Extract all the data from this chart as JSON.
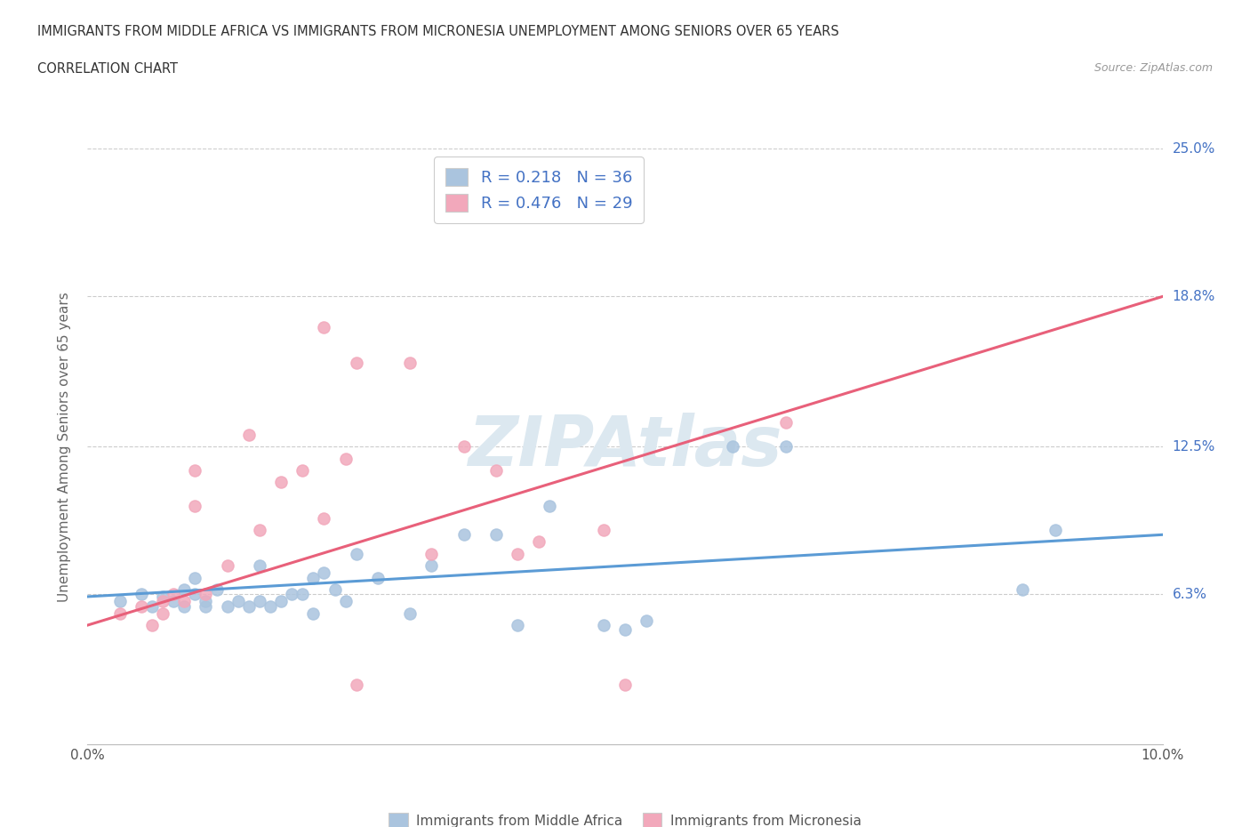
{
  "title_line1": "IMMIGRANTS FROM MIDDLE AFRICA VS IMMIGRANTS FROM MICRONESIA UNEMPLOYMENT AMONG SENIORS OVER 65 YEARS",
  "title_line2": "CORRELATION CHART",
  "source_text": "Source: ZipAtlas.com",
  "ylabel": "Unemployment Among Seniors over 65 years",
  "xlim": [
    0.0,
    0.1
  ],
  "ylim": [
    0.0,
    0.25
  ],
  "ytick_labels_right": [
    "6.3%",
    "12.5%",
    "18.8%",
    "25.0%"
  ],
  "ytick_vals_right": [
    0.063,
    0.125,
    0.188,
    0.25
  ],
  "legend_label1": "Immigrants from Middle Africa",
  "legend_label2": "Immigrants from Micronesia",
  "color_blue": "#aac4de",
  "color_pink": "#f2a8bb",
  "line_blue": "#5b9bd5",
  "line_pink": "#e8607a",
  "watermark_color": "#dce8f0",
  "blue_scatter_x": [
    0.003,
    0.005,
    0.006,
    0.007,
    0.008,
    0.009,
    0.009,
    0.01,
    0.01,
    0.011,
    0.011,
    0.012,
    0.013,
    0.014,
    0.015,
    0.016,
    0.016,
    0.017,
    0.018,
    0.019,
    0.02,
    0.021,
    0.021,
    0.022,
    0.023,
    0.024,
    0.025,
    0.027,
    0.03,
    0.032,
    0.035,
    0.038,
    0.04,
    0.043,
    0.048,
    0.05,
    0.052,
    0.06,
    0.065,
    0.087,
    0.09
  ],
  "blue_scatter_y": [
    0.06,
    0.063,
    0.058,
    0.062,
    0.06,
    0.058,
    0.065,
    0.063,
    0.07,
    0.058,
    0.06,
    0.065,
    0.058,
    0.06,
    0.058,
    0.06,
    0.075,
    0.058,
    0.06,
    0.063,
    0.063,
    0.055,
    0.07,
    0.072,
    0.065,
    0.06,
    0.08,
    0.07,
    0.055,
    0.075,
    0.088,
    0.088,
    0.05,
    0.1,
    0.05,
    0.048,
    0.052,
    0.125,
    0.125,
    0.065,
    0.09
  ],
  "pink_scatter_x": [
    0.003,
    0.005,
    0.006,
    0.007,
    0.007,
    0.008,
    0.009,
    0.01,
    0.01,
    0.011,
    0.013,
    0.015,
    0.016,
    0.018,
    0.02,
    0.022,
    0.022,
    0.024,
    0.025,
    0.025,
    0.03,
    0.032,
    0.035,
    0.038,
    0.04,
    0.042,
    0.048,
    0.05,
    0.065
  ],
  "pink_scatter_y": [
    0.055,
    0.058,
    0.05,
    0.06,
    0.055,
    0.063,
    0.06,
    0.1,
    0.115,
    0.063,
    0.075,
    0.13,
    0.09,
    0.11,
    0.115,
    0.095,
    0.175,
    0.12,
    0.16,
    0.025,
    0.16,
    0.08,
    0.125,
    0.115,
    0.08,
    0.085,
    0.09,
    0.025,
    0.135
  ],
  "blue_trend_x": [
    0.0,
    0.1
  ],
  "blue_trend_y": [
    0.062,
    0.088
  ],
  "pink_trend_x": [
    0.0,
    0.1
  ],
  "pink_trend_y": [
    0.05,
    0.188
  ]
}
